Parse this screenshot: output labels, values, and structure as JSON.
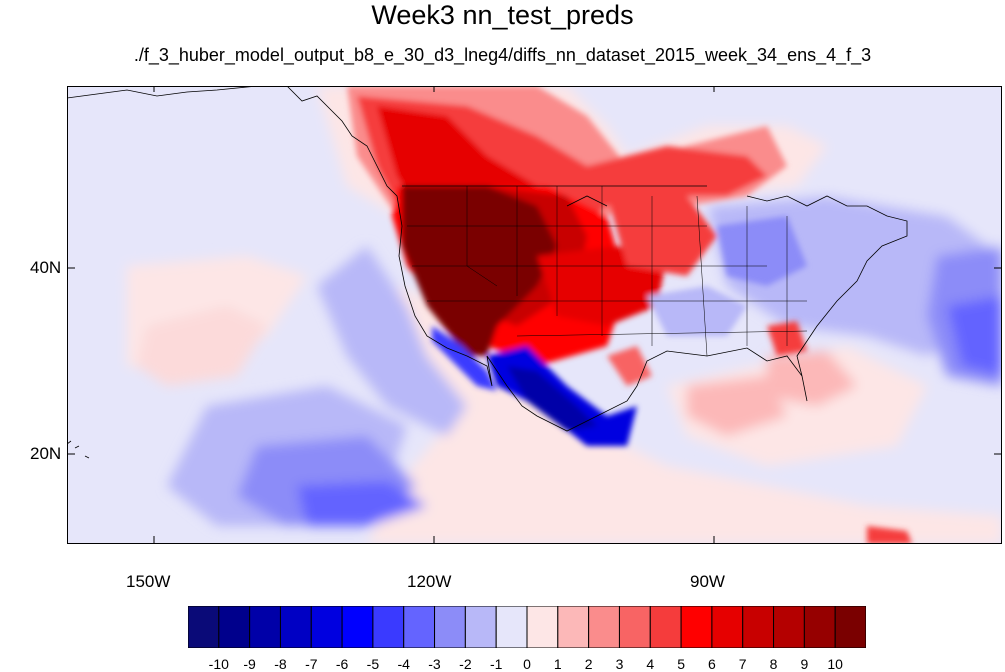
{
  "title": "Week3 nn_test_preds",
  "subtitle": "./f_3_huber_model_output_b8_e_30_d3_lneg4/diffs_nn_dataset_2015_week_34_ens_4_f_3",
  "map": {
    "lat_labels": [
      {
        "text": "40N",
        "value": 40
      },
      {
        "text": "20N",
        "value": 20
      }
    ],
    "lon_labels": [
      {
        "text": "150W",
        "value": -150
      },
      {
        "text": "120W",
        "value": -120
      },
      {
        "text": "90W",
        "value": -90
      }
    ],
    "lon_range": [
      -160,
      -60
    ],
    "lat_range": [
      10,
      60
    ]
  },
  "colorbar": {
    "labels": [
      "-10",
      "-9",
      "-8",
      "-7",
      "-6",
      "-5",
      "-4",
      "-3",
      "-2",
      "-1",
      "0",
      "1",
      "2",
      "3",
      "4",
      "5",
      "6",
      "7",
      "8",
      "9",
      "10"
    ],
    "colors": [
      "#0a0a78",
      "#00008c",
      "#0000a8",
      "#0000c4",
      "#0000e0",
      "#0000ff",
      "#3a3aff",
      "#6464ff",
      "#8c8cf8",
      "#b8b8f8",
      "#e6e6fa",
      "#fde6e6",
      "#fcb8b8",
      "#fa8c8c",
      "#f86464",
      "#f53c3c",
      "#ff0000",
      "#e60000",
      "#c80000",
      "#b40000",
      "#960000",
      "#7a0000"
    ]
  }
}
